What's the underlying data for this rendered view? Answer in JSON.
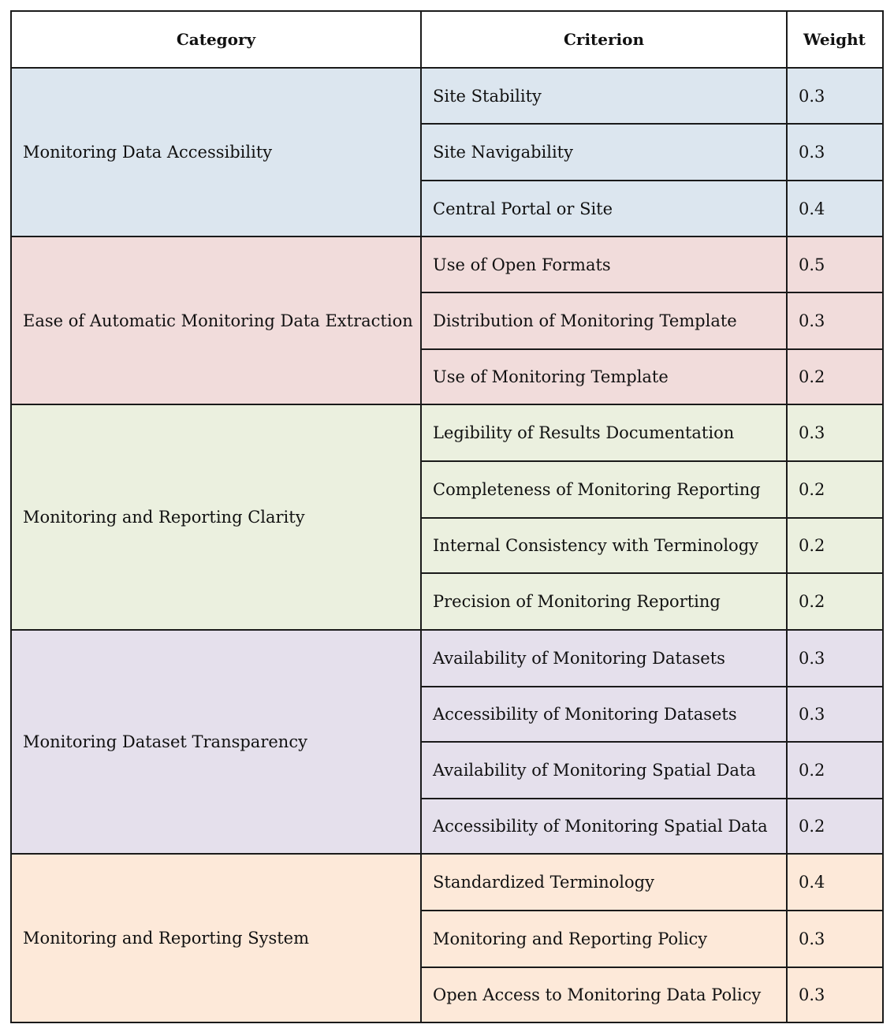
{
  "headers": {
    "category": "Category",
    "criterion": "Criterion",
    "weight": "Weight"
  },
  "groups": [
    {
      "category": "Monitoring Data Accessibility",
      "color": "#dce6ef",
      "rows": [
        {
          "criterion": "Site Stability",
          "weight": "0.3"
        },
        {
          "criterion": "Site Navigability",
          "weight": "0.3"
        },
        {
          "criterion": "Central Portal or Site",
          "weight": "0.4"
        }
      ]
    },
    {
      "category": "Ease of Automatic Monitoring Data Extraction",
      "color": "#f1dcdb",
      "rows": [
        {
          "criterion": "Use of Open Formats",
          "weight": "0.5"
        },
        {
          "criterion": "Distribution of Monitoring Template",
          "weight": "0.3"
        },
        {
          "criterion": "Use of Monitoring Template",
          "weight": "0.2"
        }
      ]
    },
    {
      "category": "Monitoring and Reporting Clarity",
      "color": "#ebf0df",
      "rows": [
        {
          "criterion": "Legibility of Results Documentation",
          "weight": "0.3"
        },
        {
          "criterion": "Completeness of Monitoring Reporting",
          "weight": "0.2"
        },
        {
          "criterion": "Internal Consistency with Terminology",
          "weight": "0.2"
        },
        {
          "criterion": "Precision of Monitoring Reporting",
          "weight": "0.2"
        }
      ]
    },
    {
      "category": "Monitoring Dataset Transparency",
      "color": "#e5e0ec",
      "rows": [
        {
          "criterion": "Availability of Monitoring Datasets",
          "weight": "0.3"
        },
        {
          "criterion": "Accessibility of Monitoring Datasets",
          "weight": "0.3"
        },
        {
          "criterion": "Availability of Monitoring Spatial Data",
          "weight": "0.2"
        },
        {
          "criterion": "Accessibility of Monitoring Spatial Data",
          "weight": "0.2"
        }
      ]
    },
    {
      "category": "Monitoring and Reporting System",
      "color": "#fde9d9",
      "rows": [
        {
          "criterion": "Standardized Terminology",
          "weight": "0.4"
        },
        {
          "criterion": "Monitoring and Reporting Policy",
          "weight": "0.3"
        },
        {
          "criterion": "Open Access to Monitoring Data Policy",
          "weight": "0.3"
        }
      ]
    }
  ]
}
